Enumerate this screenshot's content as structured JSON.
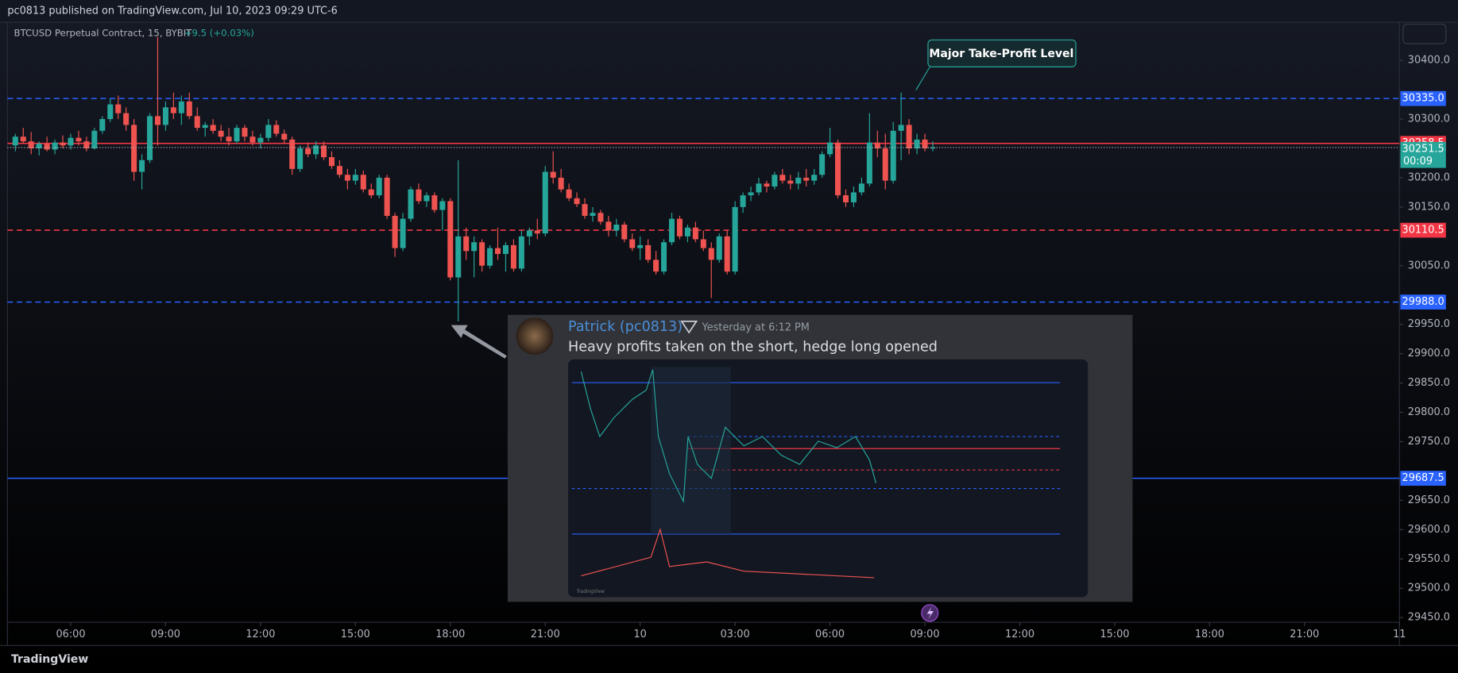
{
  "header": "pc0813 published on TradingView.com, Jul 10, 2023 09:29 UTC-6",
  "legend": {
    "symbol": "BTCUSD Perpetual Contract, 15, BYBIT",
    "change": "+9.5 (+0.03%)"
  },
  "annotation": "Major Take-Profit Level",
  "message": {
    "author": "Patrick (pc0813)",
    "time": "Yesterday at 6:12 PM",
    "text": "Heavy profits taken on the short, hedge long opened"
  },
  "footer": "TradingView",
  "chart_data": {
    "type": "candlestick",
    "up_color": "#26a69a",
    "down_color": "#ef5350",
    "xlim": [
      4,
      48
    ],
    "ylim": [
      29442,
      30465
    ],
    "xticks": [
      {
        "value": 6,
        "label": "06:00"
      },
      {
        "value": 9,
        "label": "09:00"
      },
      {
        "value": 12,
        "label": "12:00"
      },
      {
        "value": 15,
        "label": "15:00"
      },
      {
        "value": 18,
        "label": "18:00"
      },
      {
        "value": 21,
        "label": "21:00"
      },
      {
        "value": 24,
        "label": "10"
      },
      {
        "value": 27,
        "label": "03:00"
      },
      {
        "value": 30,
        "label": "06:00"
      },
      {
        "value": 33,
        "label": "09:00"
      },
      {
        "value": 36,
        "label": "12:00"
      },
      {
        "value": 39,
        "label": "15:00"
      },
      {
        "value": 42,
        "label": "18:00"
      },
      {
        "value": 45,
        "label": "21:00"
      },
      {
        "value": 48,
        "label": "11"
      }
    ],
    "yticks": [
      {
        "value": 30400,
        "label": "30400.0"
      },
      {
        "value": 30300,
        "label": "30300.0"
      },
      {
        "value": 30200,
        "label": "30200.0"
      },
      {
        "value": 30150,
        "label": "30150.0"
      },
      {
        "value": 30050,
        "label": "30050.0"
      },
      {
        "value": 29950,
        "label": "29950.0"
      },
      {
        "value": 29900,
        "label": "29900.0"
      },
      {
        "value": 29850,
        "label": "29850.0"
      },
      {
        "value": 29800,
        "label": "29800.0"
      },
      {
        "value": 29750,
        "label": "29750.0"
      },
      {
        "value": 29650,
        "label": "29650.0"
      },
      {
        "value": 29600,
        "label": "29600.0"
      },
      {
        "value": 29550,
        "label": "29550.0"
      },
      {
        "value": 29500,
        "label": "29500.0"
      },
      {
        "value": 29450,
        "label": "29450.0"
      }
    ],
    "levels": [
      {
        "value": 30335,
        "label": "30335.0",
        "color": "#2962ff",
        "style": "dashed"
      },
      {
        "value": 30258.5,
        "label": "30258.5",
        "color": "#f23645",
        "style": "solid"
      },
      {
        "value": 30110.5,
        "label": "30110.5",
        "color": "#f23645",
        "style": "dashed"
      },
      {
        "value": 29988,
        "label": "29988.0",
        "color": "#2962ff",
        "style": "dashed"
      },
      {
        "value": 29687.5,
        "label": "29687.5",
        "color": "#2962ff",
        "style": "solid"
      }
    ],
    "last_price": {
      "value": 30251.5,
      "label": "30251.5",
      "countdown": "00:09",
      "color": "#26a69a"
    },
    "x": [
      4.25,
      4.5,
      4.75,
      5,
      5.25,
      5.5,
      5.75,
      6,
      6.25,
      6.5,
      6.75,
      7,
      7.25,
      7.5,
      7.75,
      8,
      8.25,
      8.5,
      8.75,
      9,
      9.25,
      9.5,
      9.75,
      10,
      10.25,
      10.5,
      10.75,
      11,
      11.25,
      11.5,
      11.75,
      12,
      12.25,
      12.5,
      12.75,
      13,
      13.25,
      13.5,
      13.75,
      14,
      14.25,
      14.5,
      14.75,
      15,
      15.25,
      15.5,
      15.75,
      16,
      16.25,
      16.5,
      16.75,
      17,
      17.25,
      17.5,
      17.75,
      18,
      18.25,
      18.5,
      18.75,
      19,
      19.25,
      19.5,
      19.75,
      20,
      20.25,
      20.5,
      20.75,
      21,
      21.25,
      21.5,
      21.75,
      22,
      22.25,
      22.5,
      22.75,
      23,
      23.25,
      23.5,
      23.75,
      24,
      24.25,
      24.5,
      24.75,
      25,
      25.25,
      25.5,
      25.75,
      26,
      26.25,
      26.5,
      26.75,
      27,
      27.25,
      27.5,
      27.75,
      28,
      28.25,
      28.5,
      28.75,
      29,
      29.25,
      29.5,
      29.75,
      30,
      30.25,
      30.5,
      30.75,
      31,
      31.25,
      31.5,
      31.75,
      32,
      32.25,
      32.5,
      32.75,
      33,
      33.25
    ],
    "candles": [
      [
        30255,
        30275,
        30245,
        30270
      ],
      [
        30270,
        30285,
        30258,
        30262
      ],
      [
        30262,
        30278,
        30240,
        30250
      ],
      [
        30250,
        30262,
        30238,
        30258
      ],
      [
        30258,
        30270,
        30245,
        30248
      ],
      [
        30248,
        30265,
        30240,
        30260
      ],
      [
        30260,
        30272,
        30250,
        30255
      ],
      [
        30255,
        30275,
        30248,
        30268
      ],
      [
        30268,
        30280,
        30255,
        30262
      ],
      [
        30262,
        30270,
        30245,
        30250
      ],
      [
        30250,
        30285,
        30248,
        30280
      ],
      [
        30280,
        30305,
        30275,
        30300
      ],
      [
        30300,
        30335,
        30295,
        30325
      ],
      [
        30325,
        30340,
        30300,
        30310
      ],
      [
        30310,
        30320,
        30280,
        30290
      ],
      [
        30290,
        30300,
        30195,
        30210
      ],
      [
        30210,
        30240,
        30180,
        30230
      ],
      [
        30230,
        30310,
        30225,
        30305
      ],
      [
        30305,
        30440,
        30255,
        30290
      ],
      [
        30290,
        30330,
        30280,
        30320
      ],
      [
        30320,
        30345,
        30300,
        30310
      ],
      [
        30310,
        30340,
        30290,
        30330
      ],
      [
        30330,
        30345,
        30300,
        30305
      ],
      [
        30305,
        30320,
        30280,
        30285
      ],
      [
        30285,
        30295,
        30270,
        30290
      ],
      [
        30290,
        30300,
        30275,
        30280
      ],
      [
        30280,
        30290,
        30262,
        30270
      ],
      [
        30270,
        30285,
        30255,
        30262
      ],
      [
        30262,
        30290,
        30258,
        30285
      ],
      [
        30285,
        30290,
        30262,
        30270
      ],
      [
        30270,
        30280,
        30255,
        30260
      ],
      [
        30260,
        30275,
        30250,
        30268
      ],
      [
        30268,
        30300,
        30262,
        30290
      ],
      [
        30290,
        30298,
        30270,
        30275
      ],
      [
        30275,
        30282,
        30258,
        30265
      ],
      [
        30265,
        30270,
        30205,
        30215
      ],
      [
        30215,
        30255,
        30210,
        30250
      ],
      [
        30250,
        30260,
        30235,
        30240
      ],
      [
        30240,
        30262,
        30232,
        30255
      ],
      [
        30255,
        30262,
        30230,
        30235
      ],
      [
        30235,
        30245,
        30215,
        30220
      ],
      [
        30220,
        30230,
        30200,
        30205
      ],
      [
        30205,
        30215,
        30180,
        30195
      ],
      [
        30195,
        30215,
        30188,
        30205
      ],
      [
        30205,
        30212,
        30175,
        30180
      ],
      [
        30180,
        30190,
        30165,
        30170
      ],
      [
        30170,
        30205,
        30165,
        30200
      ],
      [
        30200,
        30205,
        30130,
        30135
      ],
      [
        30135,
        30140,
        30065,
        30080
      ],
      [
        30080,
        30140,
        30075,
        30130
      ],
      [
        30130,
        30185,
        30125,
        30180
      ],
      [
        30180,
        30190,
        30155,
        30160
      ],
      [
        30160,
        30175,
        30150,
        30170
      ],
      [
        30170,
        30175,
        30140,
        30145
      ],
      [
        30145,
        30165,
        30110,
        30160
      ],
      [
        30160,
        30165,
        30025,
        30030
      ],
      [
        30030,
        30230,
        29955,
        30100
      ],
      [
        30100,
        30115,
        30060,
        30075
      ],
      [
        30075,
        30100,
        30030,
        30090
      ],
      [
        30090,
        30095,
        30040,
        30050
      ],
      [
        30050,
        30085,
        30045,
        30080
      ],
      [
        30080,
        30115,
        30060,
        30070
      ],
      [
        30070,
        30090,
        30040,
        30085
      ],
      [
        30085,
        30095,
        30040,
        30045
      ],
      [
        30045,
        30110,
        30040,
        30100
      ],
      [
        30100,
        30115,
        30085,
        30110
      ],
      [
        30110,
        30130,
        30095,
        30105
      ],
      [
        30105,
        30220,
        30100,
        30210
      ],
      [
        30210,
        30245,
        30190,
        30200
      ],
      [
        30200,
        30215,
        30175,
        30180
      ],
      [
        30180,
        30190,
        30160,
        30165
      ],
      [
        30165,
        30175,
        30150,
        30155
      ],
      [
        30155,
        30165,
        30130,
        30135
      ],
      [
        30135,
        30150,
        30125,
        30140
      ],
      [
        30140,
        30145,
        30120,
        30125
      ],
      [
        30125,
        30135,
        30100,
        30110
      ],
      [
        30110,
        30130,
        30100,
        30120
      ],
      [
        30120,
        30125,
        30090,
        30095
      ],
      [
        30095,
        30105,
        30075,
        30080
      ],
      [
        30080,
        30100,
        30060,
        30085
      ],
      [
        30085,
        30095,
        30055,
        30060
      ],
      [
        30060,
        30075,
        30035,
        30040
      ],
      [
        30040,
        30095,
        30035,
        30090
      ],
      [
        30090,
        30140,
        30085,
        30130
      ],
      [
        30130,
        30135,
        30095,
        30100
      ],
      [
        30100,
        30120,
        30090,
        30115
      ],
      [
        30115,
        30125,
        30090,
        30095
      ],
      [
        30095,
        30110,
        30075,
        30080
      ],
      [
        30080,
        30090,
        29995,
        30060
      ],
      [
        30060,
        30105,
        30055,
        30100
      ],
      [
        30100,
        30110,
        30035,
        30040
      ],
      [
        30040,
        30160,
        30035,
        30150
      ],
      [
        30150,
        30175,
        30140,
        30170
      ],
      [
        30170,
        30185,
        30160,
        30175
      ],
      [
        30175,
        30200,
        30170,
        30190
      ],
      [
        30190,
        30195,
        30175,
        30185
      ],
      [
        30185,
        30210,
        30180,
        30205
      ],
      [
        30205,
        30215,
        30190,
        30195
      ],
      [
        30195,
        30205,
        30180,
        30190
      ],
      [
        30190,
        30210,
        30180,
        30200
      ],
      [
        30200,
        30215,
        30185,
        30195
      ],
      [
        30195,
        30215,
        30188,
        30205
      ],
      [
        30205,
        30245,
        30200,
        30240
      ],
      [
        30240,
        30285,
        30235,
        30260
      ],
      [
        30260,
        30265,
        30165,
        30170
      ],
      [
        30170,
        30180,
        30150,
        30158
      ],
      [
        30158,
        30185,
        30150,
        30175
      ],
      [
        30175,
        30200,
        30170,
        30190
      ],
      [
        30190,
        30310,
        30185,
        30260
      ],
      [
        30260,
        30280,
        30235,
        30250
      ],
      [
        30250,
        30275,
        30180,
        30195
      ],
      [
        30195,
        30295,
        30190,
        30280
      ],
      [
        30280,
        30345,
        30230,
        30290
      ],
      [
        30290,
        30300,
        30240,
        30250
      ],
      [
        30250,
        30275,
        30240,
        30265
      ],
      [
        30265,
        30275,
        30245,
        30250
      ],
      [
        30250,
        30262,
        30245,
        30251.5
      ]
    ]
  }
}
